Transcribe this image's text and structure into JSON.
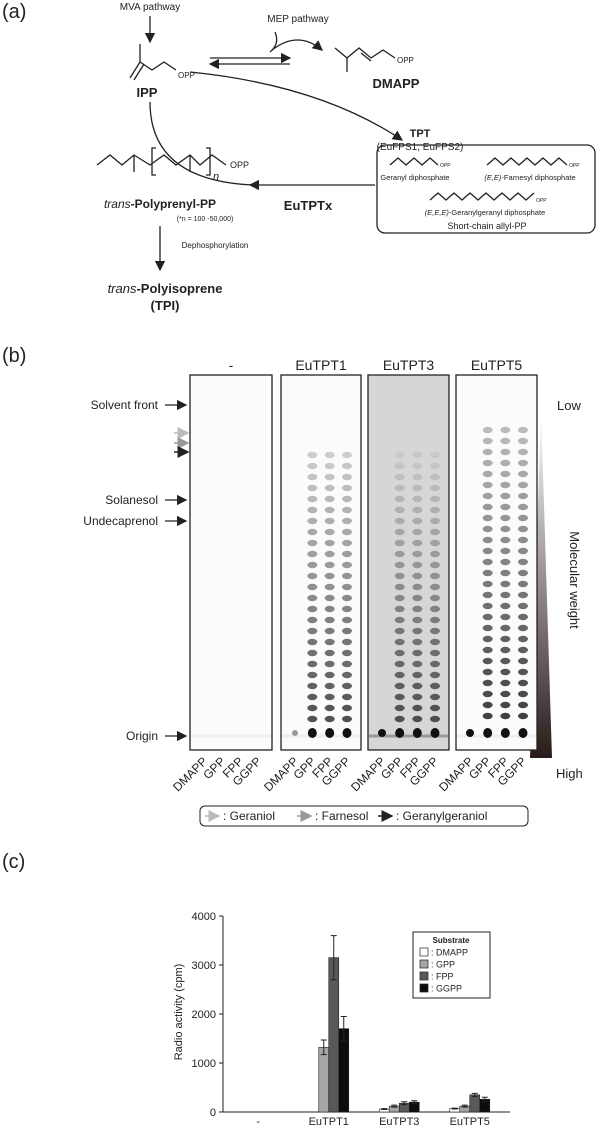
{
  "panel_a": {
    "label": "(a)",
    "mva": "MVA pathway",
    "mep": "MEP pathway",
    "opp": "OPP",
    "ipp": "IPP",
    "dmapp": "DMAPP",
    "tpt": "TPT",
    "tpt_enzymes": "(EuFPS1, EuFPS2)",
    "geranyl": "Geranyl diphosphate",
    "farnesyl_prefix": "(E,E)",
    "farnesyl": "-Farnesyl diphosphate",
    "ggpp_prefix": "(E,E,E)",
    "ggpp": "-Geranylgeranyl diphosphate",
    "box_title": "Short-chain allyl-PP",
    "eutptx": "EuTPTx",
    "n": "n",
    "polyprenyl_prefix": "trans",
    "polyprenyl": "-Polyprenyl-PP",
    "n_range": "(*n = 100 -50,000)",
    "dephos": "Dephosphorylation",
    "tpi_prefix": "trans",
    "tpi": "-Polyisoprene",
    "tpi_abbr": "(TPI)"
  },
  "panel_b": {
    "label": "(b)",
    "lanes": [
      "-",
      "EuTPT1",
      "EuTPT3",
      "EuTPT5"
    ],
    "markers": [
      "Solvent front",
      "Solanesol",
      "Undecaprenol",
      "Origin"
    ],
    "low": "Low",
    "high": "High",
    "mw": "Molecular weight",
    "substrates": [
      "DMAPP",
      "GPP",
      "FPP",
      "GGPP"
    ],
    "legend": [
      ": Geraniol",
      ": Farnesol",
      ": Geranylgeraniol"
    ]
  },
  "panel_c_label": "(c)",
  "chart_data": {
    "type": "bar",
    "y_label": "Radio activity (cpm)",
    "legend_title": "Substrate",
    "categories": [
      "-",
      "EuTPT1",
      "EuTPT3",
      "EuTPT5"
    ],
    "series": [
      {
        "name": ": DMAPP",
        "color": "#ffffff",
        "values": [
          0,
          0,
          60,
          70
        ],
        "errors": [
          0,
          0,
          10,
          10
        ]
      },
      {
        "name": ": GPP",
        "color": "#a6a6a6",
        "values": [
          0,
          1320,
          120,
          120
        ],
        "errors": [
          0,
          150,
          20,
          20
        ]
      },
      {
        "name": ": FPP",
        "color": "#595959",
        "values": [
          0,
          3150,
          180,
          350
        ],
        "errors": [
          0,
          450,
          30,
          30
        ]
      },
      {
        "name": ": GGPP",
        "color": "#0d0d0d",
        "values": [
          0,
          1700,
          200,
          260
        ],
        "errors": [
          0,
          250,
          30,
          40
        ]
      }
    ],
    "ylim": [
      0,
      4000
    ],
    "yticks": [
      0,
      1000,
      2000,
      3000,
      4000
    ]
  }
}
